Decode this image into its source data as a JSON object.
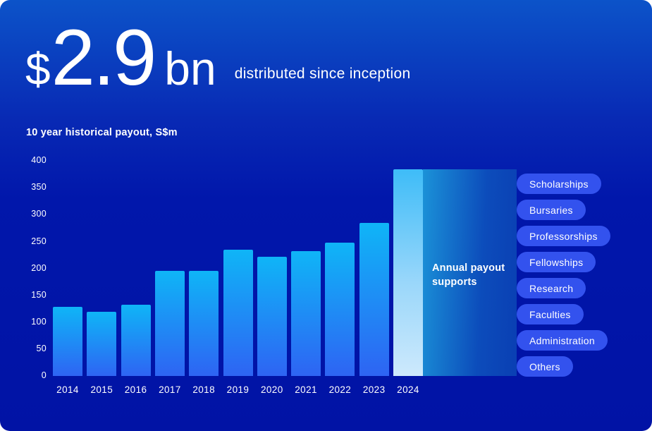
{
  "header": {
    "currency": "$",
    "amount": "2.9",
    "unit": "bn",
    "caption": "distributed since inception"
  },
  "chart_data": {
    "type": "bar",
    "title": "10 year historical payout, S$m",
    "categories": [
      "2014",
      "2015",
      "2016",
      "2017",
      "2018",
      "2019",
      "2020",
      "2021",
      "2022",
      "2023",
      "2024"
    ],
    "values": [
      128,
      120,
      132,
      195,
      195,
      235,
      222,
      232,
      248,
      285,
      385
    ],
    "value_unit": "S$m",
    "ylim": [
      0,
      400
    ],
    "yticks": [
      0,
      50,
      100,
      150,
      200,
      250,
      300,
      350,
      400
    ],
    "grid": false,
    "highlight_category": "2024",
    "colors": {
      "bar_top": "#0FB5F7",
      "bar_bottom": "#2E64F3",
      "highlight_top": "#3EBCF8",
      "highlight_mid": "#9AD7FA",
      "highlight_bottom": "#CDE9FC"
    }
  },
  "annotation": {
    "label": "Annual payout supports",
    "tags": [
      "Scholarships",
      "Bursaries",
      "Professorships",
      "Fellowships",
      "Research",
      "Faculties",
      "Administration",
      "Others"
    ]
  },
  "colors": {
    "background_top": "#0C53C9",
    "background_mid": "#0117AB",
    "background_bottom": "#0113A5",
    "band_left": "#1B92D8",
    "band_right": "#0A3FB3",
    "pill": "#3352EE",
    "text": "#FFFFFF"
  }
}
